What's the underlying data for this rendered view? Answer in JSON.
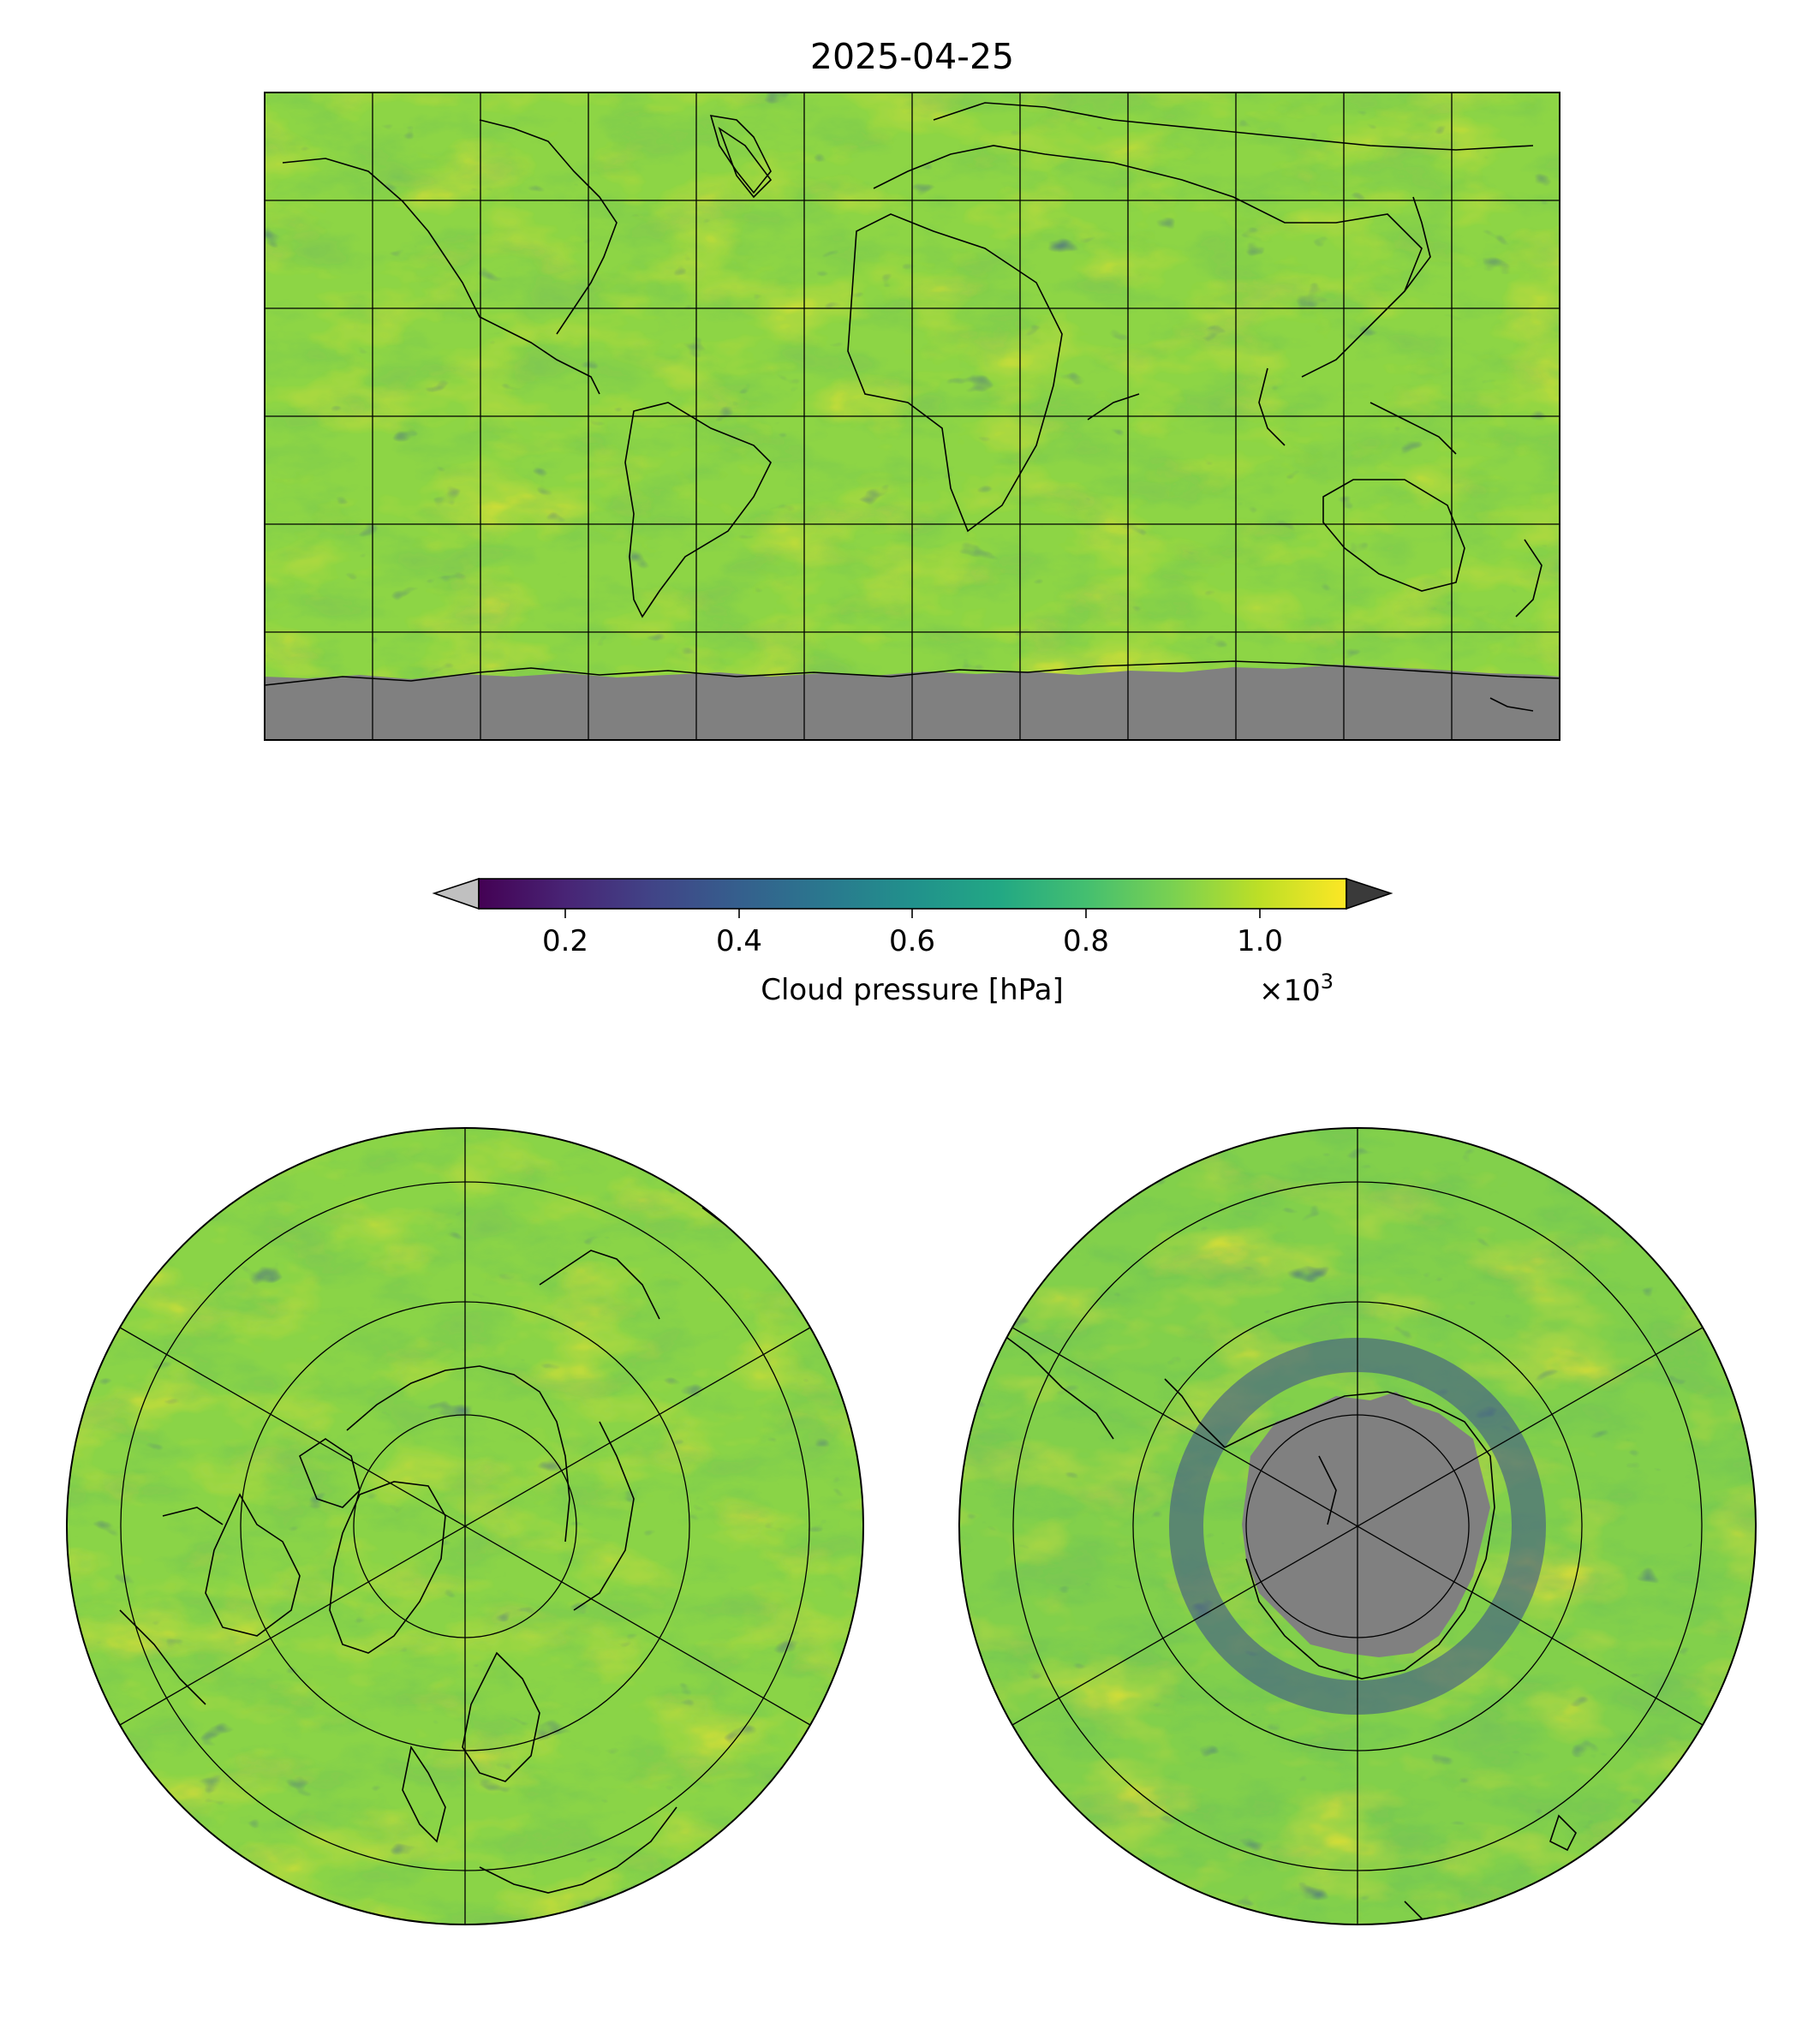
{
  "title": "2025-04-25",
  "colorbar": {
    "label": "Cloud pressure [hPa]",
    "ticks": [
      "0.2",
      "0.4",
      "0.6",
      "0.8",
      "1.0"
    ],
    "tick_values": [
      0.2,
      0.4,
      0.6,
      0.8,
      1.0
    ],
    "multiplier_prefix": "×10",
    "multiplier_exponent": "3",
    "vmin": 0.1,
    "vmax": 1.1,
    "colormap": "viridis",
    "under_color": "#c0c0c0",
    "over_color": "#3a3a3a"
  },
  "maps": {
    "global": {
      "projection": "plate-carree",
      "no_data_color": "#808080"
    },
    "north_polar": {
      "projection": "north-polar-stereographic"
    },
    "south_polar": {
      "projection": "south-polar-stereographic",
      "no_data_color": "#808080"
    }
  }
}
